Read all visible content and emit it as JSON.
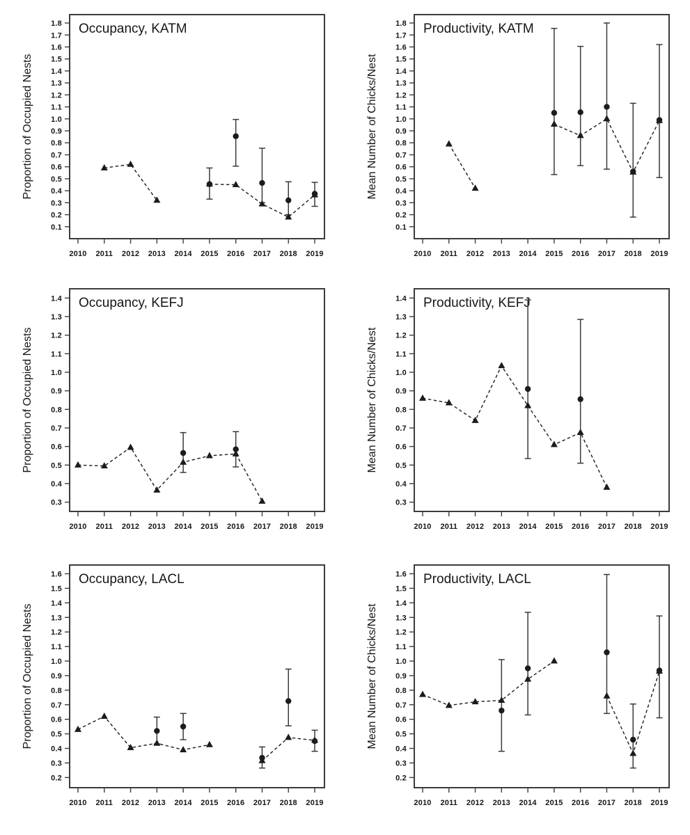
{
  "figure": {
    "background_color": "#ffffff",
    "ink_color": "#1c1c1c",
    "frame_color": "#3c3c3c",
    "columns": [
      "Occupancy",
      "Productivity"
    ],
    "rows": [
      "KATM",
      "KEFJ",
      "LACL"
    ]
  },
  "chart_data": {
    "type": "line",
    "subtype": "dashed-trend-with-error-bars",
    "categories": [
      2010,
      2011,
      2012,
      2013,
      2014,
      2015,
      2016,
      2017,
      2018,
      2019
    ],
    "xlabel": "",
    "legend": "none",
    "grid": false,
    "marker_styles": {
      "triangle": "filled black triangle joined by dashed line",
      "circle": "filled black circle with vertical error bar and caps"
    },
    "panels": [
      {
        "id": "occupancy-katm",
        "title": "Occupancy, KATM",
        "ylabel": "Proportion of Occupied Nests",
        "ylim": [
          0.0,
          1.87
        ],
        "yticks": [
          0.1,
          0.2,
          0.3,
          0.4,
          0.5,
          0.6,
          0.7,
          0.8,
          0.9,
          1.0,
          1.1,
          1.2,
          1.3,
          1.4,
          1.5,
          1.6,
          1.7,
          1.8
        ],
        "series": [
          {
            "name": "triangle-dashed",
            "values": [
              null,
              0.59,
              0.62,
              0.32,
              null,
              0.455,
              0.45,
              0.29,
              0.18,
              0.365
            ]
          },
          {
            "name": "circle-ci",
            "values": [
              null,
              null,
              null,
              null,
              null,
              0.455,
              0.855,
              0.465,
              0.32,
              0.375
            ],
            "ci_low": [
              null,
              null,
              null,
              null,
              null,
              0.33,
              0.605,
              0.3,
              0.2,
              0.27
            ],
            "ci_high": [
              null,
              null,
              null,
              null,
              null,
              0.59,
              0.995,
              0.755,
              0.475,
              0.47
            ]
          }
        ]
      },
      {
        "id": "productivity-katm",
        "title": "Productivity, KATM",
        "ylabel": "Mean Number of Chicks/Nest",
        "ylim": [
          0.0,
          1.87
        ],
        "yticks": [
          0.1,
          0.2,
          0.3,
          0.4,
          0.5,
          0.6,
          0.7,
          0.8,
          0.9,
          1.0,
          1.1,
          1.2,
          1.3,
          1.4,
          1.5,
          1.6,
          1.7,
          1.8
        ],
        "series": [
          {
            "name": "triangle-dashed",
            "values": [
              null,
              0.79,
              0.42,
              null,
              null,
              0.955,
              0.86,
              1.0,
              0.555,
              0.985
            ]
          },
          {
            "name": "circle-ci",
            "values": [
              null,
              null,
              null,
              null,
              null,
              1.05,
              1.055,
              1.1,
              0.56,
              0.99
            ],
            "ci_low": [
              null,
              null,
              null,
              null,
              null,
              0.535,
              0.61,
              0.58,
              0.18,
              0.51
            ],
            "ci_high": [
              null,
              null,
              null,
              null,
              null,
              1.755,
              1.605,
              1.8,
              1.13,
              1.62
            ]
          }
        ]
      },
      {
        "id": "occupancy-kefj",
        "title": "Occupancy, KEFJ",
        "ylabel": "Proportion of Occupied Nests",
        "ylim": [
          0.25,
          1.45
        ],
        "yticks": [
          0.3,
          0.4,
          0.5,
          0.6,
          0.7,
          0.8,
          0.9,
          1.0,
          1.1,
          1.2,
          1.3,
          1.4
        ],
        "series": [
          {
            "name": "triangle-dashed",
            "values": [
              0.5,
              0.495,
              0.595,
              0.365,
              0.515,
              0.55,
              0.56,
              0.305,
              null,
              null
            ]
          },
          {
            "name": "circle-ci",
            "values": [
              null,
              null,
              null,
              null,
              0.565,
              null,
              0.585,
              null,
              null,
              null
            ],
            "ci_low": [
              null,
              null,
              null,
              null,
              0.46,
              null,
              0.49,
              null,
              null,
              null
            ],
            "ci_high": [
              null,
              null,
              null,
              null,
              0.675,
              null,
              0.68,
              null,
              null,
              null
            ]
          }
        ]
      },
      {
        "id": "productivity-kefj",
        "title": "Productivity, KEFJ",
        "ylabel": "Mean Number of Chicks/Nest",
        "ylim": [
          0.25,
          1.45
        ],
        "yticks": [
          0.3,
          0.4,
          0.5,
          0.6,
          0.7,
          0.8,
          0.9,
          1.0,
          1.1,
          1.2,
          1.3,
          1.4
        ],
        "series": [
          {
            "name": "triangle-dashed",
            "values": [
              0.86,
              0.835,
              0.74,
              1.035,
              0.82,
              0.61,
              0.675,
              0.38,
              null,
              null
            ]
          },
          {
            "name": "circle-ci",
            "values": [
              null,
              null,
              null,
              null,
              0.91,
              null,
              0.855,
              null,
              null,
              null
            ],
            "ci_low": [
              null,
              null,
              null,
              null,
              0.535,
              null,
              0.51,
              null,
              null,
              null
            ],
            "ci_high": [
              null,
              null,
              null,
              null,
              1.39,
              null,
              1.285,
              null,
              null,
              null
            ]
          }
        ]
      },
      {
        "id": "occupancy-lacl",
        "title": "Occupancy, LACL",
        "ylabel": "Proportion of Occupied Nests",
        "ylim": [
          0.13,
          1.66
        ],
        "yticks": [
          0.2,
          0.3,
          0.4,
          0.5,
          0.6,
          0.7,
          0.8,
          0.9,
          1.0,
          1.1,
          1.2,
          1.3,
          1.4,
          1.5,
          1.6
        ],
        "series": [
          {
            "name": "triangle-dashed",
            "values": [
              0.53,
              0.62,
              0.405,
              0.435,
              0.39,
              0.425,
              null,
              0.315,
              0.475,
              0.455
            ]
          },
          {
            "name": "circle-ci",
            "values": [
              null,
              null,
              null,
              0.52,
              0.55,
              null,
              null,
              0.335,
              0.725,
              0.45
            ],
            "ci_low": [
              null,
              null,
              null,
              0.43,
              0.46,
              null,
              null,
              0.265,
              0.555,
              0.38
            ],
            "ci_high": [
              null,
              null,
              null,
              0.615,
              0.64,
              null,
              null,
              0.41,
              0.945,
              0.525
            ]
          }
        ]
      },
      {
        "id": "productivity-lacl",
        "title": "Productivity, LACL",
        "ylabel": "Mean Number of Chicks/Nest",
        "ylim": [
          0.13,
          1.66
        ],
        "yticks": [
          0.2,
          0.3,
          0.4,
          0.5,
          0.6,
          0.7,
          0.8,
          0.9,
          1.0,
          1.1,
          1.2,
          1.3,
          1.4,
          1.5,
          1.6
        ],
        "series": [
          {
            "name": "triangle-dashed",
            "values": [
              0.77,
              0.695,
              0.72,
              0.73,
              0.875,
              1.0,
              null,
              0.76,
              0.365,
              0.93
            ]
          },
          {
            "name": "circle-ci",
            "values": [
              null,
              null,
              null,
              0.66,
              0.95,
              null,
              null,
              1.06,
              0.46,
              0.935
            ],
            "ci_low": [
              null,
              null,
              null,
              0.38,
              0.63,
              null,
              null,
              0.64,
              0.265,
              0.61
            ],
            "ci_high": [
              null,
              null,
              null,
              1.01,
              1.335,
              null,
              null,
              1.595,
              0.705,
              1.31
            ]
          }
        ]
      }
    ]
  }
}
